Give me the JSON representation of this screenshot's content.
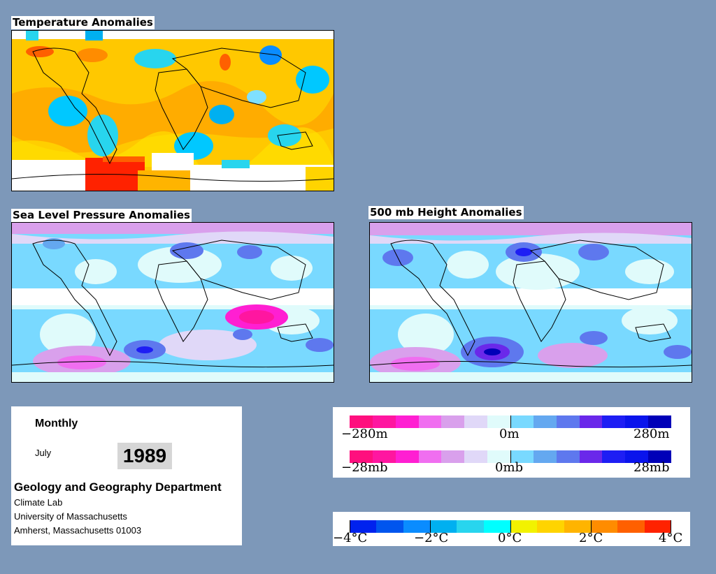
{
  "titles": {
    "temperature": "Temperature Anomalies",
    "slp": "Sea Level Pressure Anomalies",
    "height": "500 mb Height Anomalies"
  },
  "info": {
    "period": "Monthly",
    "month": "July",
    "year": "1989",
    "department": "Geology and Geography Department",
    "lab": "Climate Lab",
    "university": "University of Massachusetts",
    "address": "Amherst, Massachusetts 01003"
  },
  "legend_height": {
    "left": "−280m",
    "center": "0m",
    "right": "280m"
  },
  "legend_pressure": {
    "left": "−28mb",
    "center": "0mb",
    "right": "28mb"
  },
  "legend_temp": {
    "l1": "−4°C",
    "l2": "−2°C",
    "l3": "0°C",
    "l4": "2°C",
    "l5": "4°C"
  },
  "colors": {
    "background": "#7d98b9",
    "anomaly_scale": [
      "#ff0f7e",
      "#ff16a0",
      "#ff1fd2",
      "#f06ef0",
      "#d9a0ec",
      "#e0d8f8",
      "#e0fbfb",
      "#79d9ff",
      "#64a8f0",
      "#5e78ee",
      "#6a28ea",
      "#1e1ef4",
      "#0a14ec",
      "#0000b8"
    ],
    "temp_scale": [
      "#0022ee",
      "#0055ee",
      "#0a8cff",
      "#00b0f0",
      "#28d5ee",
      "#00ffff",
      "#f2f200",
      "#ffd400",
      "#ffb400",
      "#ff8c00",
      "#ff6000",
      "#ff2200"
    ]
  }
}
